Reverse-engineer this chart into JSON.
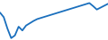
{
  "x": [
    0,
    1,
    2,
    3,
    4,
    5,
    6,
    7,
    8,
    9,
    10,
    11,
    12,
    13,
    14,
    15,
    16,
    17,
    18,
    19,
    20,
    21,
    22,
    23,
    24,
    25,
    26,
    27,
    28,
    29
  ],
  "y": [
    72,
    60,
    30,
    5,
    12,
    35,
    25,
    38,
    44,
    50,
    55,
    58,
    61,
    64,
    67,
    70,
    73,
    76,
    79,
    82,
    85,
    88,
    91,
    94,
    97,
    89,
    80,
    85,
    90,
    95
  ],
  "line_color": "#1a6fbd",
  "line_width": 1.3,
  "background_color": "#ffffff",
  "ylim": [
    0,
    105
  ],
  "xlim": [
    0,
    29
  ]
}
